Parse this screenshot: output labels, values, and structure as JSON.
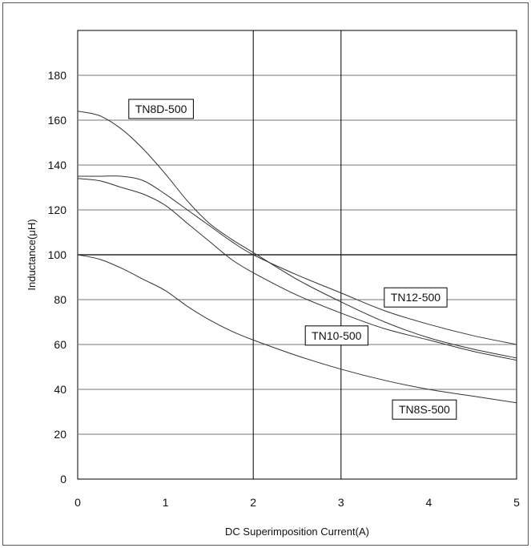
{
  "chart_data": {
    "type": "line",
    "xlabel": "DC Superimposition Current(A)",
    "ylabel": "Inductance(μH)",
    "xlim": [
      0,
      5
    ],
    "ylim": [
      0,
      200
    ],
    "xticks": [
      0,
      1,
      2,
      3,
      4,
      5
    ],
    "yticks": [
      0,
      20,
      40,
      60,
      80,
      100,
      120,
      140,
      160,
      180
    ],
    "grid": true,
    "series": [
      {
        "name": "TN8D-500",
        "x": [
          0,
          0.25,
          0.5,
          0.75,
          1.0,
          1.25,
          1.5,
          1.75,
          2.0,
          2.5,
          3.0,
          3.5,
          4.0,
          4.5,
          5.0
        ],
        "y": [
          164,
          162,
          156,
          147,
          136,
          124,
          114,
          107,
          101,
          89,
          79,
          70,
          63,
          58,
          54
        ]
      },
      {
        "name": "TN12-500",
        "x": [
          0,
          0.25,
          0.5,
          0.75,
          1.0,
          1.25,
          1.5,
          1.75,
          2.0,
          2.5,
          3.0,
          3.5,
          4.0,
          4.5,
          5.0
        ],
        "y": [
          135,
          135,
          135,
          133,
          127,
          120,
          113,
          106,
          100,
          91,
          83,
          75,
          69,
          64,
          60
        ]
      },
      {
        "name": "TN10-500",
        "x": [
          0,
          0.25,
          0.5,
          0.75,
          1.0,
          1.25,
          1.5,
          1.75,
          2.0,
          2.5,
          3.0,
          3.5,
          4.0,
          4.5,
          5.0
        ],
        "y": [
          134,
          133,
          130,
          127,
          122,
          114,
          106,
          98,
          92,
          82,
          74,
          67,
          62,
          57,
          53
        ]
      },
      {
        "name": "TN8S-500",
        "x": [
          0,
          0.25,
          0.5,
          0.75,
          1.0,
          1.25,
          1.5,
          1.75,
          2.0,
          2.5,
          3.0,
          3.5,
          4.0,
          4.5,
          5.0
        ],
        "y": [
          100,
          98,
          94,
          89,
          84,
          77,
          71,
          66,
          62,
          55,
          49,
          44,
          40,
          37,
          34
        ]
      }
    ],
    "labels": [
      {
        "series": "TN8D-500",
        "text": "TN8D-500",
        "at_x": 0.95,
        "at_y": 165
      },
      {
        "series": "TN12-500",
        "text": "TN12-500",
        "at_x": 3.85,
        "at_y": 81
      },
      {
        "series": "TN10-500",
        "text": "TN10-500",
        "at_x": 2.95,
        "at_y": 64
      },
      {
        "series": "TN8S-500",
        "text": "TN8S-500",
        "at_x": 3.95,
        "at_y": 31
      }
    ]
  }
}
